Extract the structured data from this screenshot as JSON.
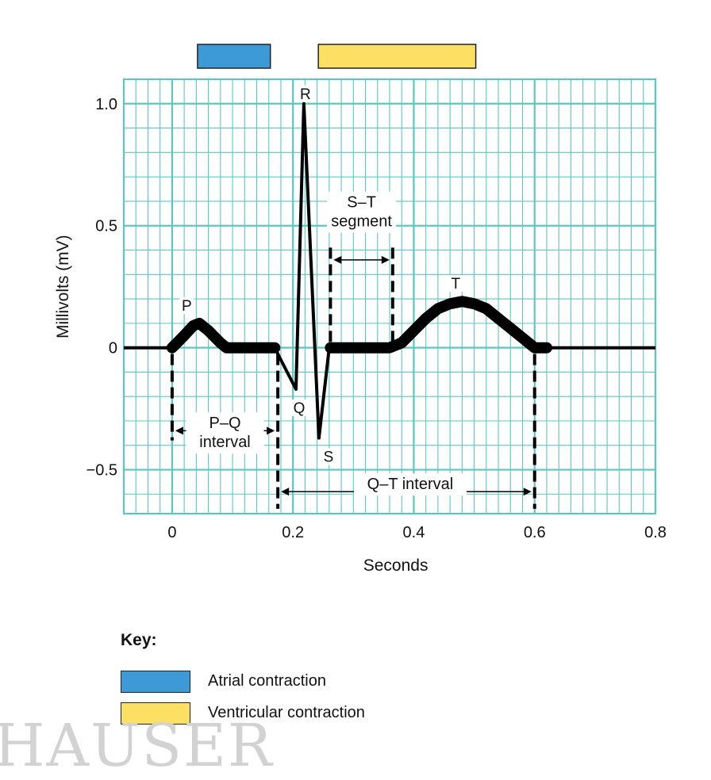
{
  "chart_data": {
    "type": "line",
    "xlabel": "Seconds",
    "ylabel": "Millivolts (mV)",
    "xlim": [
      -0.08,
      0.8
    ],
    "ylim": [
      -0.68,
      1.1
    ],
    "x_ticks": [
      "0",
      "0.2",
      "0.4",
      "0.6",
      "0.8"
    ],
    "y_ticks": [
      "1.0",
      "0.5",
      "0",
      "−0.5"
    ],
    "grid": true,
    "series": [
      {
        "x": [
          -0.08,
          0.0,
          0.02,
          0.035,
          0.045,
          0.06,
          0.08,
          0.09,
          0.17,
          0.178,
          0.205,
          0.218,
          0.243,
          0.26,
          0.262,
          0.36,
          0.38,
          0.4,
          0.42,
          0.44,
          0.46,
          0.48,
          0.5,
          0.52,
          0.54,
          0.56,
          0.58,
          0.6,
          0.62,
          0.8
        ],
        "y": [
          0,
          0,
          0.05,
          0.09,
          0.1,
          0.07,
          0.02,
          0,
          0,
          -0.04,
          -0.17,
          1.0,
          -0.37,
          0,
          0,
          0,
          0.02,
          0.07,
          0.12,
          0.16,
          0.18,
          0.19,
          0.18,
          0.16,
          0.12,
          0.08,
          0.04,
          0.0,
          0,
          0
        ]
      }
    ],
    "peak_labels": [
      {
        "label": "P",
        "x": 0.04,
        "y": 0.1
      },
      {
        "label": "Q",
        "x": 0.205,
        "y": -0.17
      },
      {
        "label": "R",
        "x": 0.218,
        "y": 1.0
      },
      {
        "label": "S",
        "x": 0.243,
        "y": -0.37
      },
      {
        "label": "T",
        "x": 0.48,
        "y": 0.19
      }
    ],
    "annotations": [
      {
        "line1": "P–Q",
        "line2": "interval",
        "x_start": 0.0,
        "x_end": 0.175
      },
      {
        "line1": "S–T",
        "line2": "segment",
        "x_start": 0.262,
        "x_end": 0.365
      },
      {
        "line1": "Q–T interval",
        "line2": "",
        "x_start": 0.175,
        "x_end": 0.6
      }
    ],
    "phase_bars": [
      {
        "phase": "Atrial contraction",
        "x_start": 0.0,
        "x_end": 0.16,
        "color": "#3d9ad6"
      },
      {
        "phase": "Ventricular contraction",
        "x_start": 0.2,
        "x_end": 0.5,
        "color": "#fbe063"
      }
    ]
  },
  "key": {
    "title": "Key:",
    "items": [
      {
        "label": "Atrial contraction",
        "color": "#3d9ad6"
      },
      {
        "label": "Ventricular contraction",
        "color": "#fbe063"
      }
    ]
  },
  "colors": {
    "grid": "#5ec6c0",
    "trace": "#000000"
  },
  "watermark": "HAUSER"
}
